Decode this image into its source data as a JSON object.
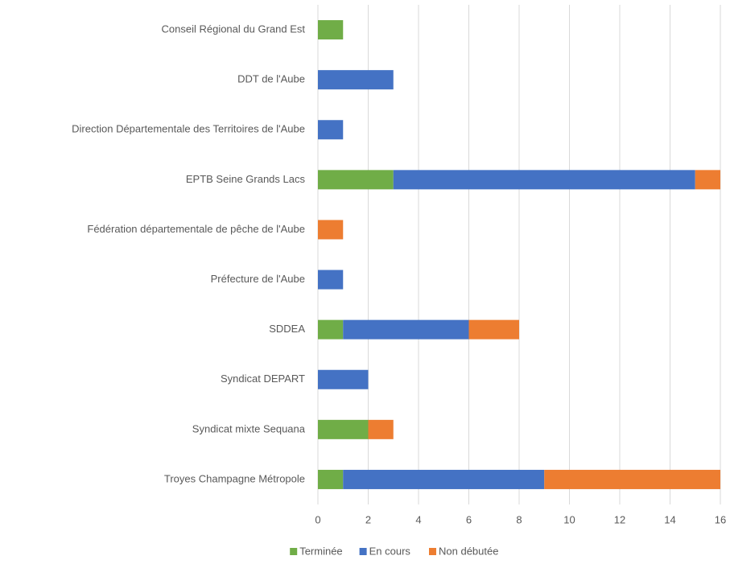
{
  "chart_data": {
    "type": "stacked_bar_horizontal",
    "categories": [
      "Conseil Régional du Grand Est",
      "DDT de l'Aube",
      "Direction Départementale des Territoires de l'Aube",
      "EPTB Seine Grands Lacs",
      "Fédération départementale de pêche de l'Aube",
      "Préfecture de l'Aube",
      "SDDEA",
      "Syndicat DEPART",
      "Syndicat mixte Sequana",
      "Troyes Champagne Métropole"
    ],
    "series": [
      {
        "name": "Terminée",
        "color": "#70ad47",
        "values": [
          1,
          0,
          0,
          3,
          0,
          0,
          1,
          0,
          2,
          1
        ]
      },
      {
        "name": "En cours",
        "color": "#4472c4",
        "values": [
          0,
          3,
          1,
          12,
          0,
          1,
          5,
          2,
          0,
          8
        ]
      },
      {
        "name": "Non débutée",
        "color": "#ed7d31",
        "values": [
          0,
          0,
          0,
          1,
          1,
          0,
          2,
          0,
          1,
          7
        ]
      }
    ],
    "xlim": [
      0,
      16
    ],
    "xticks": [
      0,
      2,
      4,
      6,
      8,
      10,
      12,
      14,
      16
    ],
    "grid": true,
    "legend": "bottom"
  }
}
